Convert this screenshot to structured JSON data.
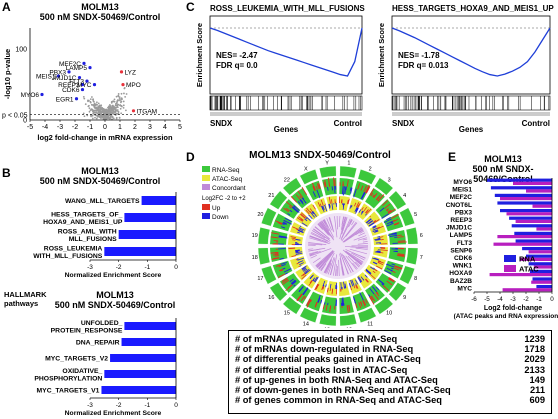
{
  "panels": {
    "A": "A",
    "B": "B",
    "C": "C",
    "D": "D",
    "E": "E"
  },
  "colors": {
    "bar_blue": "#1a1aff",
    "rna_blue": "#1f1fe0",
    "atac_magenta": "#b81fbf",
    "enrich_line": "#1f3fd8",
    "volcano_gray": "#9a9a9a",
    "volcano_red": "#e8323c",
    "circos_green": "#3cc83c",
    "circos_red": "#e03020",
    "circos_purple": "#c08ad8"
  },
  "A": {
    "title_line1": "MOLM13",
    "title_line2": "500 nM SNDX-50469/Control",
    "chart_data": {
      "type": "scatter",
      "xlabel": "log2 fold-change in mRNA expression",
      "ylabel": "-log10 p-value",
      "xlim": [
        -5,
        5
      ],
      "ylim": [
        0,
        130
      ],
      "xticks": [
        "-5",
        "-4",
        "-3",
        "-2",
        "-1",
        "0",
        "1",
        "2",
        "3",
        "4",
        "5"
      ],
      "yticks": [
        "0",
        "100"
      ],
      "threshold_label": "p < 0.05",
      "labeled_points": [
        {
          "label": "MEF2C",
          "x": -1.4,
          "y": 80
        },
        {
          "label": "LAMP5",
          "x": -1.0,
          "y": 74
        },
        {
          "label": "PBX3",
          "x": -2.4,
          "y": 68
        },
        {
          "label": "LYZ",
          "x": 1.1,
          "y": 68
        },
        {
          "label": "MEIS1",
          "x": -3.1,
          "y": 62
        },
        {
          "label": "JMJD1C",
          "x": -1.7,
          "y": 60
        },
        {
          "label": "FLT3",
          "x": -1.2,
          "y": 55
        },
        {
          "label": "REEP3",
          "x": -1.5,
          "y": 50
        },
        {
          "label": "MYC",
          "x": -0.7,
          "y": 50
        },
        {
          "label": "MPO",
          "x": 1.2,
          "y": 50
        },
        {
          "label": "CDK6",
          "x": -1.5,
          "y": 43
        },
        {
          "label": "MYO6",
          "x": -4.2,
          "y": 36
        },
        {
          "label": "EGR1",
          "x": -1.9,
          "y": 30
        },
        {
          "label": "ITGAM",
          "x": 1.9,
          "y": 13
        }
      ]
    }
  },
  "B1": {
    "title_line1": "MOLM13",
    "title_line2": "500 nM SNDX-50469/Control",
    "chart_data": {
      "type": "bar",
      "orientation": "horizontal",
      "categories": [
        "WANG_MLL_TARGETS",
        "HESS_TARGETS_OF_HOXA9_AND_MEIS1_UP",
        "ROSS_AML_WITH_MLL_FUSIONS",
        "ROSS_LEUKEMIA_WITH_MLL_FUSIONS"
      ],
      "category_lines": [
        [
          "WANG_MLL_TARGETS"
        ],
        [
          "HESS_TARGETS_OF_",
          "HOXA9_AND_MEIS1_UP"
        ],
        [
          "ROSS_AML_WITH",
          "MLL_FUSIONS"
        ],
        [
          "ROSS_LEUKEMIA",
          "WITH_MLL_FUSIONS"
        ]
      ],
      "values": [
        -1.2,
        -1.8,
        -2.0,
        -2.5
      ],
      "xlabel": "Normalized Enrichment Score",
      "xlim": [
        -3,
        0
      ],
      "xticks": [
        "-3",
        "-2",
        "-1",
        "0"
      ]
    }
  },
  "B2": {
    "pathway_label_line1": "HALLMARK",
    "pathway_label_line2": "pathways",
    "title_line1": "MOLM13",
    "title_line2": "500 nM SNDX-50469/Control",
    "chart_data": {
      "type": "bar",
      "orientation": "horizontal",
      "categories": [
        "UNFOLDED_PROTEIN_RESPONSE",
        "DNA_REPAIR",
        "MYC_TARGETS_V2",
        "OXIDATIVE_PHOSPHORYLATION",
        "MYC_TARGETS_V1"
      ],
      "category_lines": [
        [
          "UNFOLDED_",
          "PROTEIN_RESPONSE"
        ],
        [
          "DNA_REPAIR"
        ],
        [
          "MYC_TARGETS_V2"
        ],
        [
          "OXIDATIVE_",
          "PHOSPHORYLATION"
        ],
        [
          "MYC_TARGETS_V1"
        ]
      ],
      "values": [
        -1.8,
        -1.9,
        -2.3,
        -2.5,
        -2.6
      ],
      "xlabel": "Normalized Enrichment Score",
      "xlim": [
        -3,
        0
      ],
      "xticks": [
        "-3",
        "-2",
        "-1",
        "0"
      ]
    }
  },
  "C": {
    "chart_data": [
      {
        "type": "line",
        "title": "ROSS_LEUKEMIA_WITH_MLL_FUSIONS",
        "ylabel": "Enrichment Score",
        "xlabel": "Genes",
        "left_label": "SNDX",
        "right_label": "Control",
        "nes": "NES= -2.47",
        "fdr": "FDR q= 0.0",
        "profile": [
          0,
          0.05,
          0.11,
          0.17,
          0.23,
          0.29,
          0.35,
          0.41,
          0.47,
          0.52,
          0.57,
          0.62,
          0.67,
          0.72,
          0.77,
          0.82,
          0.87,
          0.92,
          0.97,
          1.0,
          0.7,
          0.0
        ]
      },
      {
        "type": "line",
        "title": "HESS_TARGETS_HOXA9_AND_MEIS1_UP",
        "ylabel": "Enrichment Score",
        "xlabel": "Genes",
        "left_label": "SNDX",
        "right_label": "Control",
        "nes": "NES= -1.78",
        "fdr": "FDR q= 0.013",
        "profile": [
          0,
          0.06,
          0.13,
          0.2,
          0.28,
          0.36,
          0.44,
          0.52,
          0.6,
          0.68,
          0.76,
          0.84,
          0.91,
          0.97,
          1.0,
          0.96,
          0.9,
          0.82,
          0.7,
          0.5,
          0.25,
          0.0
        ]
      }
    ]
  },
  "D": {
    "title": "MOLM13 SNDX-50469/Control",
    "legend": [
      {
        "label": "RNA-Seq",
        "color": "#3cc83c"
      },
      {
        "label": "ATAC-Seq",
        "color": "#e8e83c"
      },
      {
        "label": "Concordant",
        "color": "#c08ad8"
      }
    ],
    "scale_label": "Log2FC -2 to +2",
    "dir_legend": [
      {
        "label": "Up",
        "color": "#e03020"
      },
      {
        "label": "Down",
        "color": "#1f1fe0"
      }
    ],
    "chromosomes": [
      "1",
      "2",
      "3",
      "4",
      "5",
      "6",
      "7",
      "8",
      "9",
      "10",
      "11",
      "12",
      "13",
      "14",
      "15",
      "16",
      "17",
      "18",
      "19",
      "20",
      "21",
      "22",
      "X",
      "Y"
    ]
  },
  "E": {
    "title_line1": "MOLM13",
    "title_line2": "500 nM SNDX-50469/Control",
    "chart_data": {
      "type": "bar",
      "orientation": "horizontal",
      "categories": [
        "MYO6",
        "MEIS1",
        "MEF2C",
        "CNOT6L",
        "PBX3",
        "REEP3",
        "JMJD1C",
        "LAMP5",
        "FLT3",
        "SENP6",
        "CDK6",
        "WNK1",
        "HOXA9",
        "BAZ2B",
        "MYC"
      ],
      "series": [
        {
          "name": "RNA",
          "color": "#1f1fe0",
          "values": [
            -5.0,
            -4.7,
            -4.4,
            -4.2,
            -4.0,
            -3.3,
            -3.1,
            -2.9,
            -2.8,
            -2.3,
            -2.0,
            -1.8,
            -1.7,
            -1.5,
            -1.2
          ]
        },
        {
          "name": "ATAC",
          "color": "#b81fbf",
          "values": [
            -3.0,
            -2.0,
            -4.0,
            -1.5,
            -3.5,
            -2.8,
            -1.2,
            -4.2,
            -4.5,
            -1.8,
            -2.5,
            -1.4,
            -4.8,
            -1.6,
            -3.8
          ]
        }
      ],
      "xlabel_line1": "Log2 fold-change",
      "xlabel_line2": "(ATAC peaks and RNA expression)",
      "xlim": [
        -6,
        0
      ],
      "xticks": [
        "-6",
        "-5",
        "-4",
        "-3",
        "-2",
        "-1",
        "0"
      ],
      "legend_position": "bottom-right"
    }
  },
  "stats": [
    {
      "label": "# of mRNAs upregulated in RNA-Seq",
      "value": "1239"
    },
    {
      "label": "# of mRNAs down-regulated in RNA-Seq",
      "value": "1718"
    },
    {
      "label": "# of differential peaks gained in ATAC-Seq",
      "value": "2029"
    },
    {
      "label": "# of differential peaks lost in ATAC-Seq",
      "value": "2133"
    },
    {
      "label": "# of up-genes in both RNA-Seq and ATAC-Seq",
      "value": "149"
    },
    {
      "label": "# of down-genes in both RNA-Seq and ATAC-Seq",
      "value": "211"
    },
    {
      "label": "# of genes common in RNA-Seq and ATAC-Seq",
      "value": "609"
    }
  ]
}
